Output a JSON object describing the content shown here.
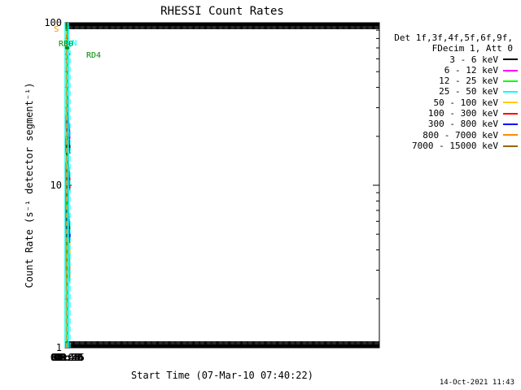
{
  "chart_data": {
    "type": "line",
    "title": "RHESSI Count Rates",
    "xlabel": "Start Time (07-Mar-10 07:40:22)",
    "ylabel": "Count Rate (s⁻¹ detector segment⁻¹)",
    "yscale": "log",
    "ylim": [
      1,
      100
    ],
    "y_ticks": [
      1,
      10,
      100
    ],
    "y_tick_labels": [
      "1",
      "10",
      "100"
    ],
    "xlim_minutes": [
      7.633,
      98.0
    ],
    "x_ticks": [
      {
        "t": 7.75,
        "label": "07:45"
      },
      {
        "t": 8.0,
        "label": "08:00"
      },
      {
        "t": 8.25,
        "label": "08:15"
      },
      {
        "t": 8.5,
        "label": "08:30"
      },
      {
        "t": 8.75,
        "label": "08:45"
      },
      {
        "t": 9.0,
        "label": "09:00"
      },
      {
        "t": 9.25,
        "label": "09:15"
      }
    ],
    "legend_header": [
      "Det 1f,3f,4f,5f,6f,9f,",
      "FDecim 1, Att 0"
    ],
    "series": [
      {
        "name": "3 - 6 keV",
        "color": "#000000",
        "x": [
          7.67,
          7.78,
          7.88,
          7.93,
          7.95,
          7.965,
          8.41,
          8.5,
          8.6,
          8.7,
          8.8,
          8.9,
          9.0,
          9.05,
          9.1,
          9.15,
          9.2,
          9.28
        ],
        "y": [
          19,
          17,
          16,
          15,
          17,
          20,
          29,
          25,
          21,
          19,
          17,
          16.5,
          17,
          18,
          19,
          19,
          20,
          20
        ]
      },
      {
        "name": "6 - 12 keV",
        "color": "#ff00ff",
        "x": [
          7.67,
          7.78,
          7.88,
          7.93,
          7.95,
          7.965,
          8.41,
          8.5,
          8.6,
          8.7,
          8.8,
          8.9,
          9.0,
          9.05,
          9.1,
          9.15,
          9.2,
          9.28
        ],
        "y": [
          26,
          24,
          22,
          20,
          22,
          26,
          34,
          31,
          26,
          23,
          21,
          20,
          21,
          22,
          24,
          25,
          26,
          26
        ]
      },
      {
        "name": "12 - 25 keV",
        "color": "#00ff00",
        "x": [
          7.67,
          7.72,
          7.78,
          7.84,
          7.88,
          7.93,
          7.95,
          7.965,
          8.41,
          8.5,
          8.6,
          8.7,
          8.8,
          8.9,
          9.0,
          9.05,
          9.1,
          9.15,
          9.2,
          9.28
        ],
        "y": [
          11,
          9,
          7,
          6,
          5.5,
          5.5,
          7,
          12,
          15,
          10,
          7.5,
          6,
          5.3,
          5,
          5.2,
          6,
          8,
          10,
          10.5,
          10
        ]
      },
      {
        "name": "25 - 50 keV",
        "color": "#00ffff",
        "x": [
          7.67,
          7.78,
          7.88,
          7.93,
          7.95,
          7.965,
          8.41,
          8.5,
          8.6,
          8.7,
          8.8,
          8.9,
          9.0,
          9.05,
          9.1,
          9.15,
          9.2,
          9.28
        ],
        "y": [
          7,
          5,
          4,
          4,
          5,
          8,
          8,
          6,
          5,
          4.3,
          4,
          3.8,
          4,
          4.4,
          5.5,
          6.5,
          7,
          6.8
        ]
      },
      {
        "name": "50 - 100 keV",
        "color": "#ffcc00",
        "x": [
          7.67,
          7.78,
          7.88,
          7.93,
          7.95,
          7.965,
          8.41,
          8.5,
          8.6,
          8.7,
          8.8,
          8.9,
          9.0,
          9.05,
          9.1,
          9.15,
          9.2,
          9.28
        ],
        "y": [
          8,
          6,
          4.5,
          4.5,
          5.5,
          9,
          10,
          7,
          5.5,
          4.6,
          4.2,
          4,
          4.3,
          5,
          6.5,
          8,
          8.5,
          8.2
        ]
      },
      {
        "name": "100 - 300 keV",
        "color": "#ff0000",
        "x": [
          7.67,
          7.78,
          7.88,
          7.93,
          7.95,
          7.965,
          8.41,
          8.5,
          8.6,
          8.7,
          8.8,
          8.9,
          9.0,
          9.05,
          9.1,
          9.15,
          9.2,
          9.28
        ],
        "y": [
          13,
          11,
          9,
          8.5,
          10,
          14,
          20,
          17,
          13.5,
          11.5,
          10.5,
          10,
          11,
          12.5,
          14.5,
          16,
          16.5,
          16
        ]
      },
      {
        "name": "300 - 800 keV",
        "color": "#0000ff",
        "x": [
          7.67,
          7.72,
          7.78,
          7.84,
          7.88,
          7.93,
          7.95,
          7.965,
          8.41,
          8.5,
          8.6,
          8.7,
          8.8,
          8.9,
          9.0,
          9.05,
          9.1,
          9.15,
          9.2,
          9.28
        ],
        "y": [
          9,
          7,
          6,
          5,
          4.5,
          4.5,
          6,
          10,
          12,
          8.5,
          6.5,
          5.5,
          5,
          4.8,
          5,
          6,
          7.5,
          9,
          9,
          8.5
        ]
      },
      {
        "name": "800 - 7000 keV",
        "color": "#ff8800",
        "x": [
          7.67,
          7.72,
          7.78,
          7.84,
          7.88,
          7.93,
          7.95,
          7.965,
          8.41,
          8.5,
          8.6,
          8.7,
          8.8,
          8.9,
          9.0,
          9.05,
          9.1,
          9.15,
          9.2,
          9.28
        ],
        "y": [
          5,
          4,
          3.5,
          3,
          2.7,
          2.8,
          3.5,
          6,
          7,
          5,
          3.8,
          3.2,
          3,
          2.9,
          3,
          3.5,
          4.5,
          5.3,
          5.5,
          5.2
        ]
      },
      {
        "name": "7000 - 15000 keV",
        "color": "#996600",
        "x": [],
        "y": []
      }
    ],
    "annotations": [
      {
        "label": "S",
        "color": "#ff8800",
        "t_start": 7.95,
        "t_end": 8.24,
        "y": 85,
        "dashed_line_t": 8.24
      },
      {
        "label": "N",
        "color": "#00ffff",
        "t_start": 7.633,
        "t_end": 7.97,
        "y": 76,
        "dashed_line_t": 7.97
      },
      {
        "label": "",
        "color": "#00ffff",
        "t_start": 9.0,
        "t_end": 9.28,
        "y": 76,
        "dashed_line_t": 9.28
      },
      {
        "label": "RB0",
        "color": "#008800",
        "t_start": 7.633,
        "t_end": 9.17,
        "y": 70
      },
      {
        "label": "RD4",
        "color": "#008800",
        "t_start": 7.633,
        "t_end": 7.68,
        "y": 64
      },
      {
        "label": "",
        "color": "#008800",
        "t_start": 9.17,
        "t_end": 9.28,
        "y": 64
      }
    ],
    "solid_vertical_lines": [
      {
        "t": 7.633,
        "color": "#00ffff"
      },
      {
        "t": 7.955,
        "color": "#ff8800"
      },
      {
        "t": 7.963,
        "color": "#00cc00"
      },
      {
        "t": 9.0,
        "color": "#00ffff"
      }
    ],
    "gap": [
      7.97,
      8.41
    ]
  },
  "footer": {
    "date": "14-Oct-2021 11:43"
  }
}
